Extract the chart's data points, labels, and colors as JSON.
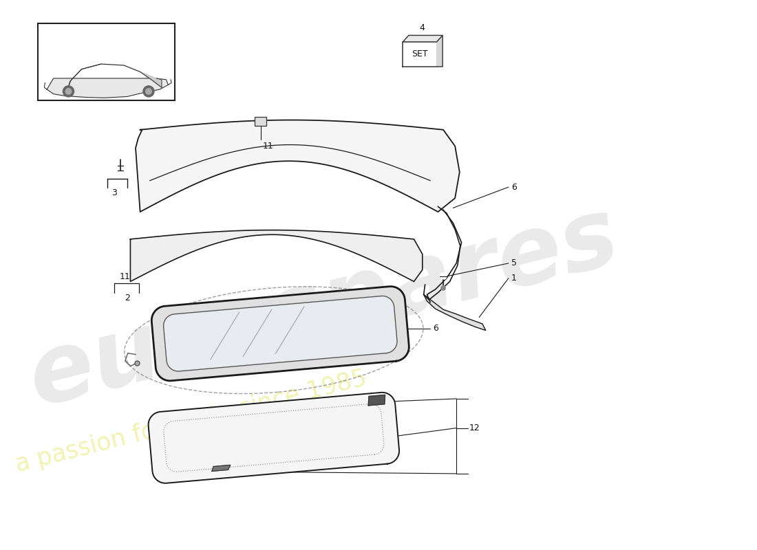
{
  "bg": "white",
  "lc": "#1a1a1a",
  "figsize": [
    11.0,
    8.0
  ],
  "dpi": 100,
  "watermark1": "eurospares",
  "watermark2": "a passion for parts since 1985"
}
